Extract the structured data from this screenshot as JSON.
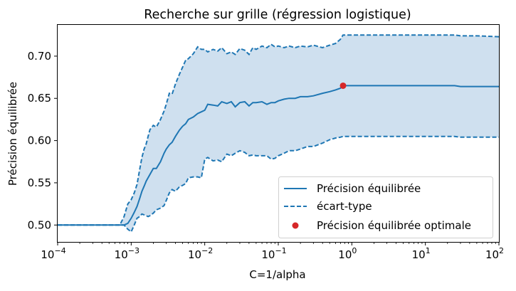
{
  "chart_data": {
    "type": "line",
    "title": "Recherche sur grille (régression logistique)",
    "xlabel": "C=1/alpha",
    "ylabel": "Précision équilibrée",
    "x_scale": "log",
    "xlim": [
      0.0001,
      100
    ],
    "ylim": [
      0.48,
      0.737
    ],
    "x_tick_values": [
      0.0001,
      0.001,
      0.01,
      0.1,
      1,
      10,
      100
    ],
    "x_tick_labels": [
      {
        "base": "10",
        "exp": "−4"
      },
      {
        "base": "10",
        "exp": "−3"
      },
      {
        "base": "10",
        "exp": "−2"
      },
      {
        "base": "10",
        "exp": "−1"
      },
      {
        "base": "10",
        "exp": "0"
      },
      {
        "base": "10",
        "exp": "1"
      },
      {
        "base": "10",
        "exp": "2"
      }
    ],
    "y_ticks": [
      0.5,
      0.55,
      0.6,
      0.65,
      0.7
    ],
    "y_tick_labels": [
      "0.50",
      "0.55",
      "0.60",
      "0.65",
      "0.70"
    ],
    "grid": false,
    "legend_position": "bottom-right",
    "colors": {
      "line": "#1f77b4",
      "fill": "#cfe0ef",
      "point": "#d62728"
    },
    "series": [
      {
        "name": "Précision équilibrée",
        "style": "solid",
        "x": [
          0.0001,
          0.0002,
          0.0003,
          0.0005,
          0.0007,
          0.0008,
          0.0009,
          0.001,
          0.0011,
          0.0012,
          0.0013,
          0.0014,
          0.0015,
          0.0016,
          0.0017,
          0.0018,
          0.002,
          0.0022,
          0.0025,
          0.0028,
          0.003,
          0.0033,
          0.0036,
          0.004,
          0.0045,
          0.005,
          0.0055,
          0.006,
          0.007,
          0.008,
          0.009,
          0.01,
          0.011,
          0.013,
          0.015,
          0.017,
          0.02,
          0.023,
          0.026,
          0.03,
          0.035,
          0.04,
          0.045,
          0.05,
          0.06,
          0.07,
          0.08,
          0.09,
          0.1,
          0.12,
          0.14,
          0.17,
          0.2,
          0.25,
          0.3,
          0.4,
          0.5,
          0.6,
          0.7,
          0.76,
          1,
          2,
          5,
          10,
          20,
          25,
          30,
          50,
          100
        ],
        "values": [
          0.5,
          0.5,
          0.5,
          0.5,
          0.5,
          0.5,
          0.502,
          0.508,
          0.515,
          0.522,
          0.531,
          0.54,
          0.546,
          0.552,
          0.556,
          0.56,
          0.567,
          0.567,
          0.575,
          0.585,
          0.59,
          0.595,
          0.598,
          0.605,
          0.612,
          0.617,
          0.62,
          0.625,
          0.628,
          0.632,
          0.634,
          0.636,
          0.643,
          0.642,
          0.641,
          0.646,
          0.644,
          0.646,
          0.64,
          0.645,
          0.646,
          0.641,
          0.645,
          0.645,
          0.646,
          0.643,
          0.645,
          0.645,
          0.647,
          0.649,
          0.65,
          0.65,
          0.652,
          0.652,
          0.653,
          0.656,
          0.658,
          0.66,
          0.662,
          0.665,
          0.665,
          0.665,
          0.665,
          0.665,
          0.665,
          0.665,
          0.664,
          0.664,
          0.664
        ]
      },
      {
        "name": "écart-type",
        "style": "dashed",
        "x": [
          0.0001,
          0.0002,
          0.0003,
          0.0005,
          0.0007,
          0.0008,
          0.0009,
          0.001,
          0.0011,
          0.0012,
          0.0013,
          0.0014,
          0.0015,
          0.0016,
          0.0017,
          0.0018,
          0.002,
          0.0022,
          0.0025,
          0.0028,
          0.003,
          0.0033,
          0.0036,
          0.004,
          0.0045,
          0.005,
          0.0055,
          0.006,
          0.007,
          0.008,
          0.009,
          0.01,
          0.011,
          0.013,
          0.015,
          0.017,
          0.02,
          0.023,
          0.026,
          0.03,
          0.035,
          0.04,
          0.045,
          0.05,
          0.06,
          0.07,
          0.08,
          0.09,
          0.1,
          0.12,
          0.14,
          0.17,
          0.2,
          0.25,
          0.3,
          0.4,
          0.5,
          0.6,
          0.7,
          0.76,
          1,
          2,
          5,
          10,
          20,
          25,
          30,
          50,
          100
        ],
        "upper": [
          0.5,
          0.5,
          0.5,
          0.5,
          0.5,
          0.51,
          0.525,
          0.53,
          0.538,
          0.548,
          0.565,
          0.58,
          0.59,
          0.596,
          0.605,
          0.613,
          0.618,
          0.616,
          0.625,
          0.635,
          0.643,
          0.656,
          0.655,
          0.667,
          0.678,
          0.687,
          0.695,
          0.697,
          0.703,
          0.711,
          0.708,
          0.708,
          0.705,
          0.708,
          0.706,
          0.71,
          0.703,
          0.705,
          0.702,
          0.709,
          0.707,
          0.702,
          0.71,
          0.708,
          0.712,
          0.71,
          0.714,
          0.711,
          0.712,
          0.71,
          0.712,
          0.71,
          0.712,
          0.711,
          0.713,
          0.71,
          0.713,
          0.715,
          0.72,
          0.725,
          0.725,
          0.725,
          0.725,
          0.725,
          0.725,
          0.725,
          0.724,
          0.724,
          0.723
        ],
        "lower": [
          0.5,
          0.5,
          0.5,
          0.5,
          0.5,
          0.5,
          0.495,
          0.492,
          0.5,
          0.508,
          0.51,
          0.513,
          0.512,
          0.511,
          0.51,
          0.511,
          0.514,
          0.518,
          0.52,
          0.523,
          0.529,
          0.538,
          0.542,
          0.54,
          0.545,
          0.547,
          0.549,
          0.556,
          0.557,
          0.557,
          0.556,
          0.578,
          0.58,
          0.576,
          0.577,
          0.575,
          0.584,
          0.582,
          0.585,
          0.588,
          0.586,
          0.582,
          0.583,
          0.582,
          0.582,
          0.582,
          0.578,
          0.579,
          0.582,
          0.585,
          0.588,
          0.588,
          0.59,
          0.593,
          0.593,
          0.597,
          0.601,
          0.603,
          0.604,
          0.605,
          0.605,
          0.605,
          0.605,
          0.605,
          0.605,
          0.605,
          0.604,
          0.604,
          0.604
        ]
      }
    ],
    "optimum": {
      "name": "Précision équilibrée optimale",
      "x": 0.76,
      "y": 0.665
    }
  }
}
